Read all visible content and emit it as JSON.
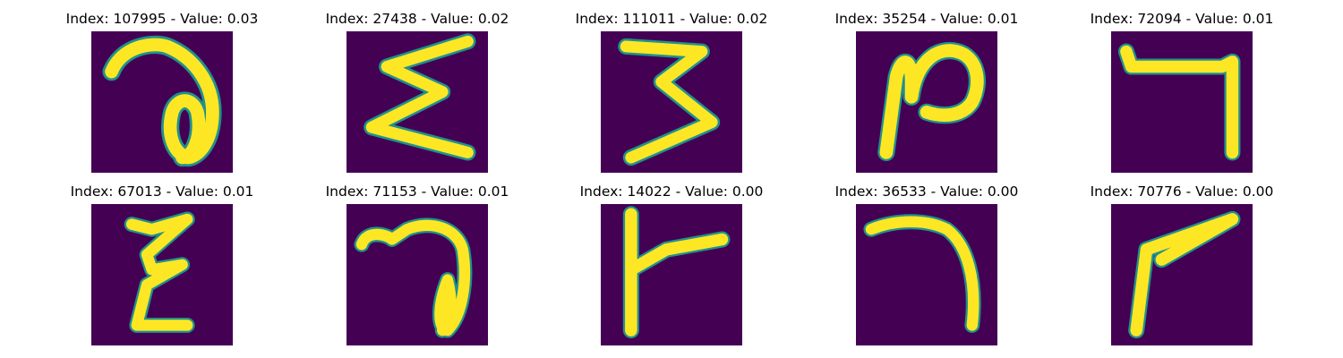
{
  "colors": {
    "background": "#440154",
    "stroke_core": "#fde725",
    "stroke_edge": "#21918c"
  },
  "panels": [
    {
      "title": "Index: 107995 - Value: 0.03"
    },
    {
      "title": "Index: 27438 - Value: 0.02"
    },
    {
      "title": "Index: 111011 - Value: 0.02"
    },
    {
      "title": "Index: 35254 - Value: 0.01"
    },
    {
      "title": "Index: 72094 - Value: 0.01"
    },
    {
      "title": "Index: 67013 - Value: 0.01"
    },
    {
      "title": "Index: 71153 - Value: 0.01"
    },
    {
      "title": "Index: 14022 - Value: 0.00"
    },
    {
      "title": "Index: 36533 - Value: 0.00"
    },
    {
      "title": "Index: 70776 - Value: 0.00"
    }
  ]
}
